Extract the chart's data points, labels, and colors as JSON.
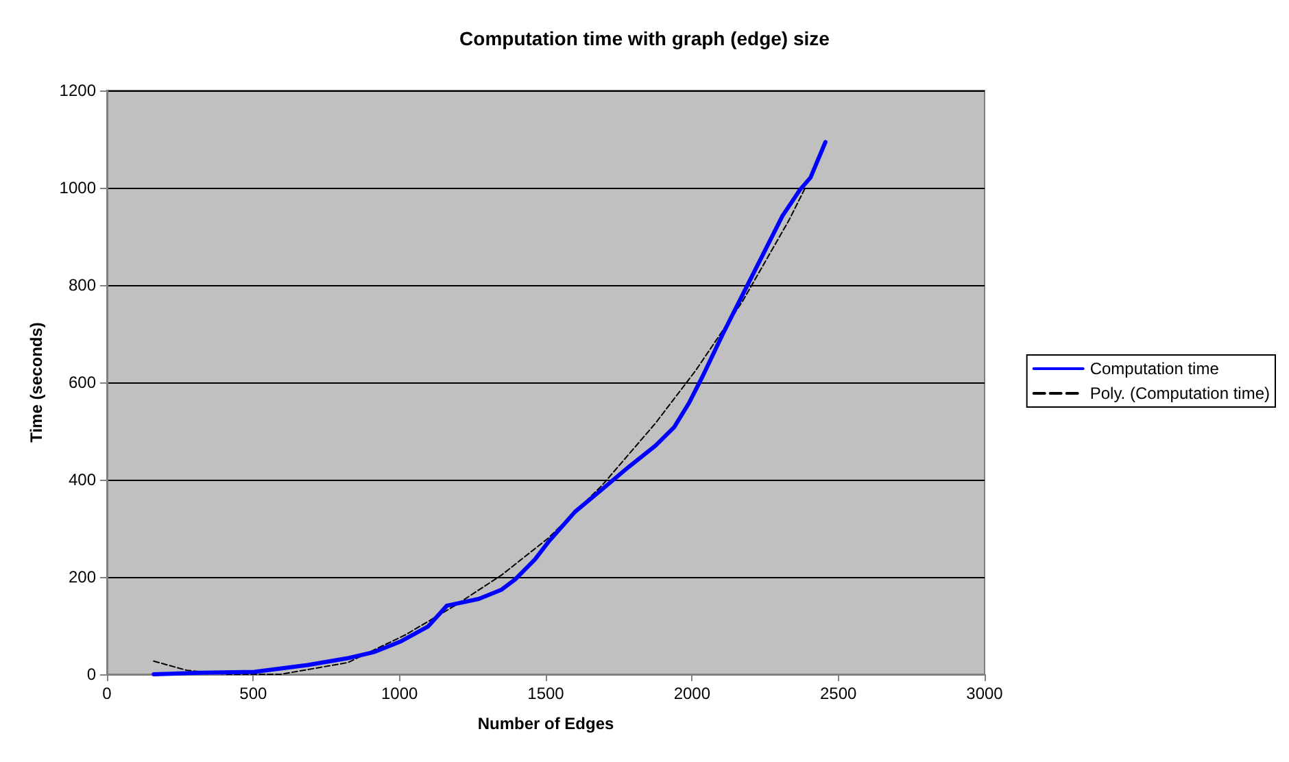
{
  "chart_data": {
    "type": "line",
    "title": "Computation time with graph (edge) size",
    "xlabel": "Number of Edges",
    "ylabel": "Time (seconds)",
    "xlim": [
      0,
      3000
    ],
    "xticks": [
      0,
      500,
      1000,
      1500,
      2000,
      2500,
      3000
    ],
    "ylim": [
      0,
      1200
    ],
    "yticks": [
      0,
      200,
      400,
      600,
      800,
      1000,
      1200
    ],
    "grid": "y",
    "legend": "right",
    "marker": "none",
    "series": [
      {
        "name": "Computation time",
        "color": "#0000ff",
        "line_style": "solid",
        "x": [
          160,
          320,
          503,
          686,
          823,
          915,
          1006,
          1097,
          1162,
          1271,
          1349,
          1395,
          1463,
          1509,
          1600,
          1692,
          1783,
          1875,
          1939,
          1989,
          2035,
          2104,
          2172,
          2241,
          2309,
          2369,
          2405,
          2456
        ],
        "values": [
          0,
          3,
          5,
          19,
          33,
          46,
          68,
          98,
          141,
          155,
          174,
          195,
          236,
          272,
          334,
          380,
          426,
          470,
          508,
          557,
          611,
          698,
          779,
          861,
          942,
          996,
          1021,
          1094
        ]
      },
      {
        "name": "Poly. (Computation time)",
        "color": "#000000",
        "line_style": "dashed",
        "x": [
          160,
          274,
          412,
          594,
          823,
          1020,
          1189,
          1349,
          1509,
          1692,
          1875,
          2012,
          2172,
          2332,
          2387
        ],
        "values": [
          27,
          8,
          0,
          0,
          24,
          81,
          141,
          204,
          280,
          388,
          516,
          624,
          766,
          934,
          1000
        ]
      }
    ]
  }
}
